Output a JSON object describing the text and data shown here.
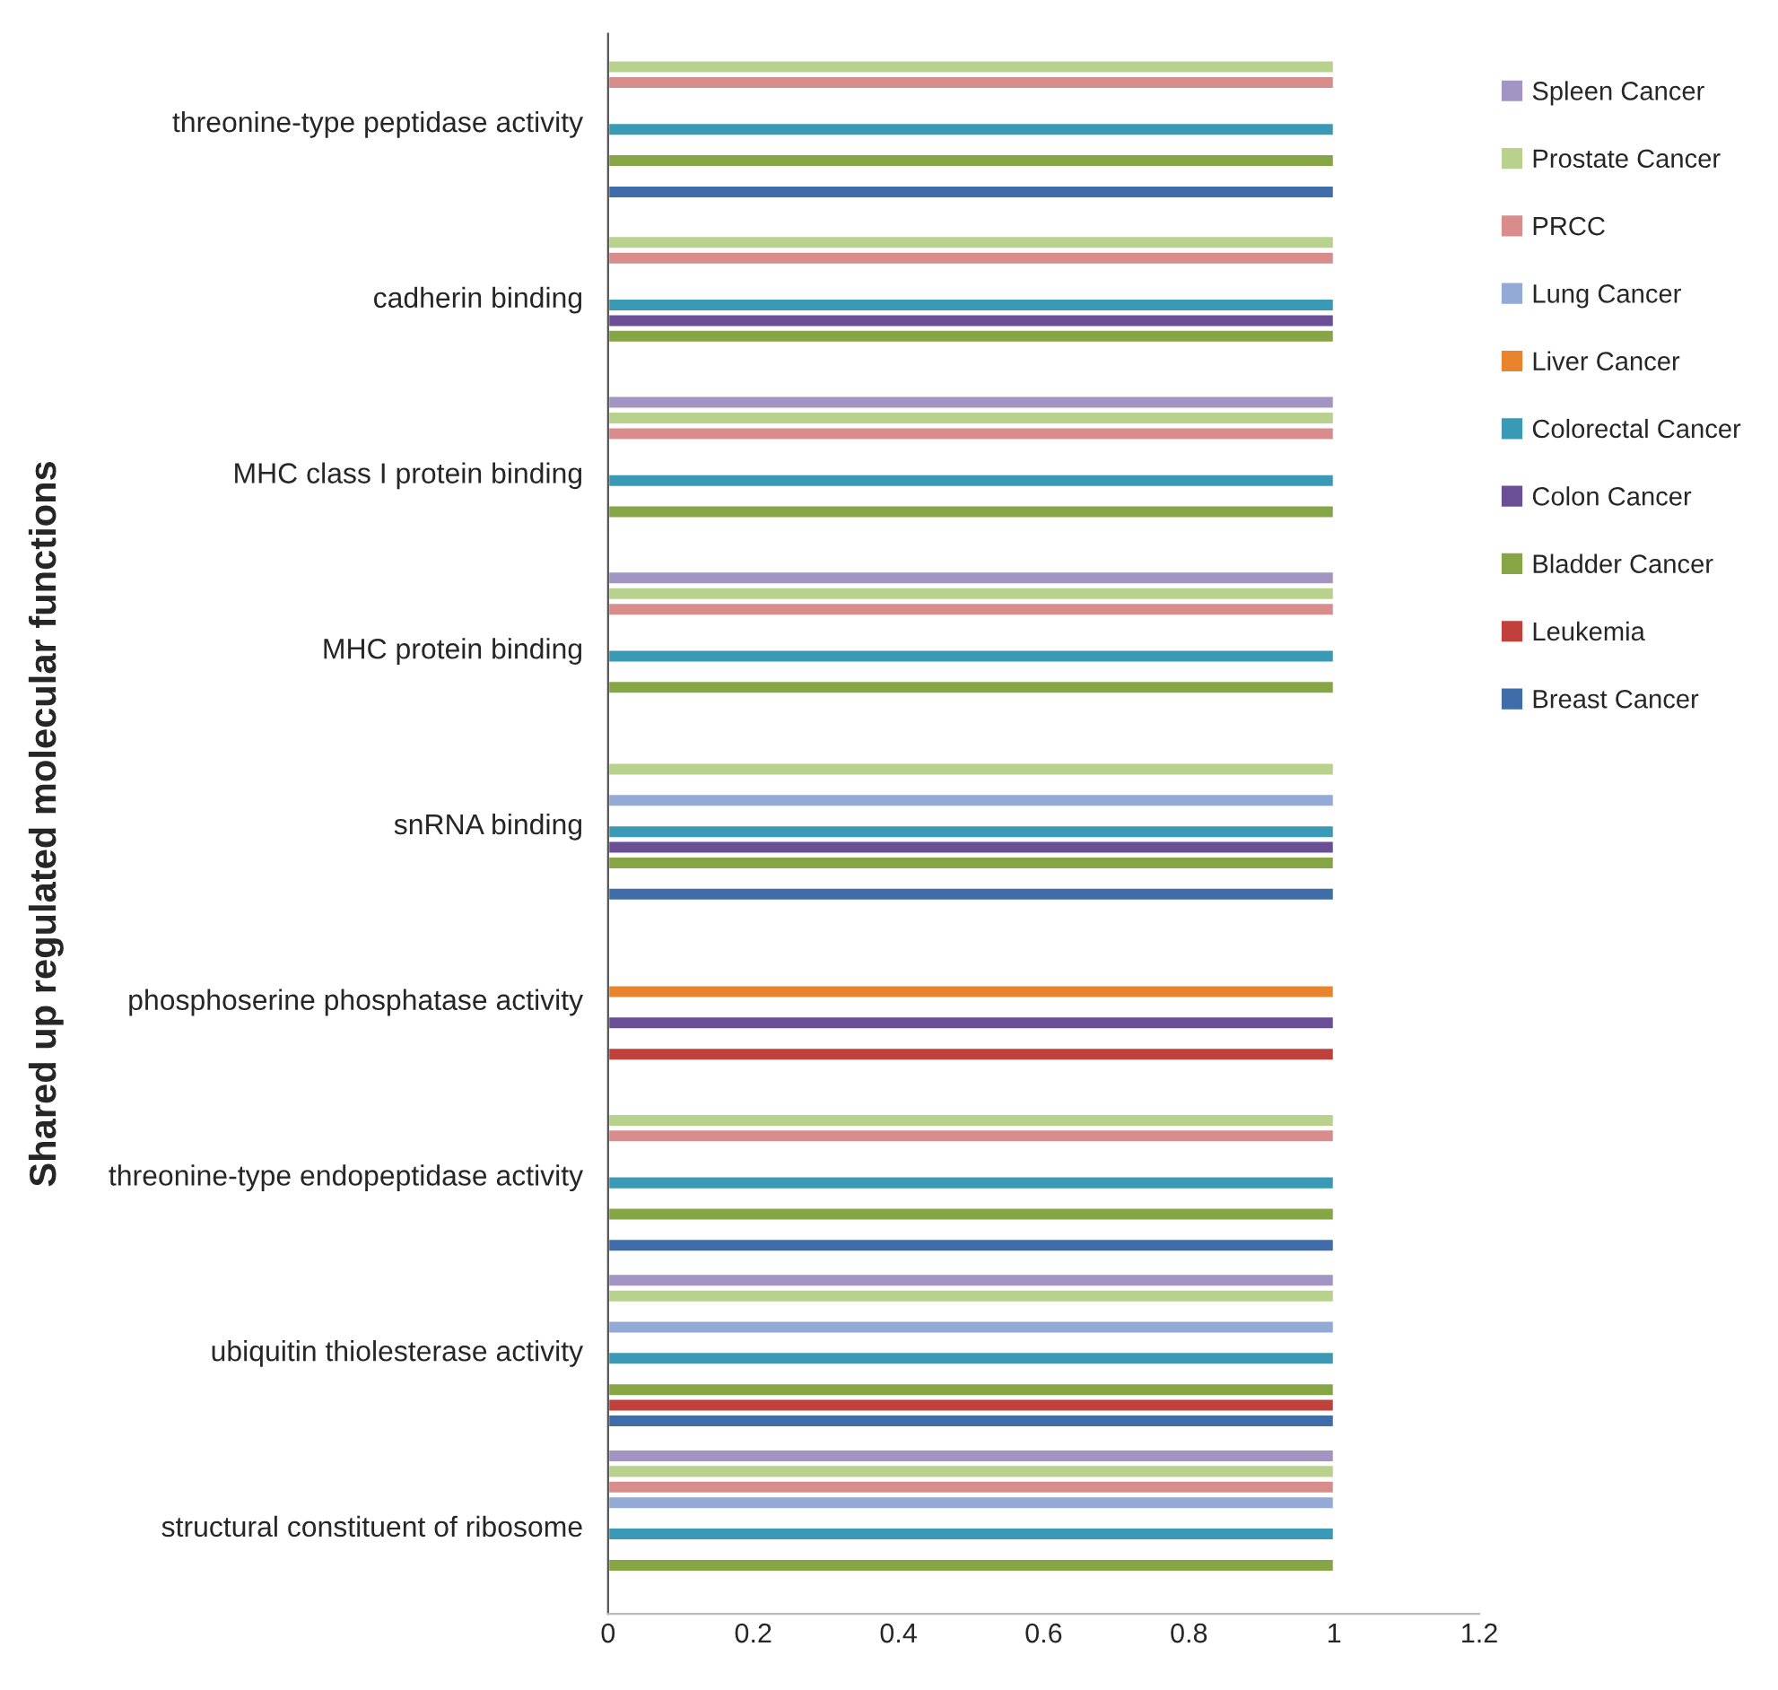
{
  "chart_data": {
    "type": "bar",
    "orientation": "horizontal",
    "ylabel": "Shared up regulated molecular functions",
    "categories": [
      "threonine-type peptidase activity",
      "cadherin binding",
      "MHC class I protein binding",
      "MHC protein binding",
      "snRNA binding",
      "phosphoserine phosphatase activity",
      "threonine-type endopeptidase activity",
      "ubiquitin thiolesterase activity",
      "structural constituent of ribosome"
    ],
    "series": [
      {
        "name": "Breast Cancer",
        "color": "#3f6daa",
        "values": [
          1,
          null,
          null,
          null,
          1,
          null,
          1,
          1,
          null
        ]
      },
      {
        "name": "Leukemia",
        "color": "#c0403c",
        "values": [
          null,
          null,
          null,
          null,
          null,
          1,
          null,
          1,
          null
        ]
      },
      {
        "name": "Bladder Cancer",
        "color": "#86a544",
        "values": [
          1,
          1,
          1,
          1,
          1,
          null,
          1,
          1,
          1
        ]
      },
      {
        "name": "Colon Cancer",
        "color": "#6b4f96",
        "values": [
          null,
          1,
          null,
          null,
          1,
          1,
          null,
          null,
          null
        ]
      },
      {
        "name": "Colorectal Cancer",
        "color": "#3a9ab5",
        "values": [
          1,
          1,
          1,
          1,
          1,
          null,
          1,
          1,
          1
        ]
      },
      {
        "name": "Liver Cancer",
        "color": "#e8842c",
        "values": [
          null,
          null,
          null,
          null,
          null,
          1,
          null,
          null,
          null
        ]
      },
      {
        "name": "Lung Cancer",
        "color": "#93a9d6",
        "values": [
          null,
          null,
          null,
          null,
          1,
          null,
          null,
          1,
          1
        ]
      },
      {
        "name": "PRCC",
        "color": "#d98c8c",
        "values": [
          1,
          1,
          1,
          1,
          null,
          null,
          1,
          null,
          1
        ]
      },
      {
        "name": "Prostate Cancer",
        "color": "#b8d18c",
        "values": [
          1,
          1,
          1,
          1,
          1,
          null,
          1,
          1,
          1
        ]
      },
      {
        "name": "Spleen Cancer",
        "color": "#a295c4",
        "values": [
          null,
          null,
          1,
          1,
          null,
          null,
          null,
          1,
          1
        ]
      }
    ],
    "xlim": [
      0,
      1.2
    ],
    "xticks": [
      0,
      0.2,
      0.4,
      0.6,
      0.8,
      1,
      1.2
    ],
    "grid": false,
    "legend": "right"
  }
}
